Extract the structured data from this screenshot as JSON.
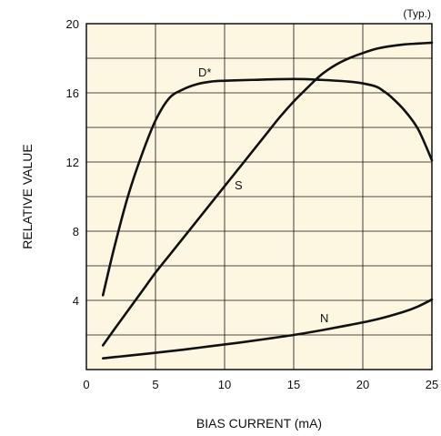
{
  "chart_data": {
    "type": "line",
    "annotation": "(Typ.)",
    "xlabel": "BIAS CURRENT (mA)",
    "ylabel": "RELATIVE VALUE",
    "xlim": [
      0,
      25
    ],
    "ylim": [
      0,
      20
    ],
    "x_ticks": [
      "0",
      "5",
      "10",
      "15",
      "20",
      "25"
    ],
    "y_ticks": [
      "4",
      "8",
      "12",
      "16",
      "20"
    ],
    "grid": true,
    "background_color": "#fdf7e1",
    "line_color": "#111111",
    "series": [
      {
        "name": "D*",
        "points": [
          [
            1.2,
            4.3
          ],
          [
            2,
            7
          ],
          [
            3,
            10
          ],
          [
            4,
            12.4
          ],
          [
            5,
            14.4
          ],
          [
            6,
            15.7
          ],
          [
            7,
            16.2
          ],
          [
            8,
            16.5
          ],
          [
            9,
            16.65
          ],
          [
            10,
            16.7
          ],
          [
            12,
            16.75
          ],
          [
            15,
            16.8
          ],
          [
            17,
            16.75
          ],
          [
            19,
            16.65
          ],
          [
            20,
            16.55
          ],
          [
            21,
            16.35
          ],
          [
            21.5,
            16.1
          ],
          [
            22,
            15.8
          ],
          [
            23,
            15
          ],
          [
            24,
            13.9
          ],
          [
            25,
            12.1
          ]
        ]
      },
      {
        "name": "S",
        "points": [
          [
            1.2,
            1.4
          ],
          [
            2,
            2.3
          ],
          [
            3,
            3.4
          ],
          [
            4,
            4.5
          ],
          [
            5,
            5.6
          ],
          [
            6,
            6.6
          ],
          [
            7,
            7.6
          ],
          [
            8,
            8.6
          ],
          [
            9,
            9.6
          ],
          [
            10,
            10.6
          ],
          [
            11,
            11.6
          ],
          [
            12,
            12.6
          ],
          [
            13,
            13.6
          ],
          [
            14,
            14.6
          ],
          [
            15,
            15.5
          ],
          [
            16,
            16.3
          ],
          [
            17,
            17.05
          ],
          [
            18,
            17.6
          ],
          [
            19,
            18
          ],
          [
            20,
            18.3
          ],
          [
            21,
            18.55
          ],
          [
            22,
            18.7
          ],
          [
            23,
            18.8
          ],
          [
            24,
            18.85
          ],
          [
            25,
            18.9
          ]
        ]
      },
      {
        "name": "N",
        "points": [
          [
            1.2,
            0.65
          ],
          [
            3,
            0.8
          ],
          [
            5,
            0.97
          ],
          [
            7,
            1.15
          ],
          [
            9,
            1.35
          ],
          [
            11,
            1.55
          ],
          [
            13,
            1.77
          ],
          [
            15,
            2.0
          ],
          [
            17,
            2.27
          ],
          [
            19,
            2.57
          ],
          [
            21,
            2.9
          ],
          [
            23,
            3.35
          ],
          [
            24,
            3.65
          ],
          [
            25,
            4.05
          ]
        ]
      }
    ]
  }
}
